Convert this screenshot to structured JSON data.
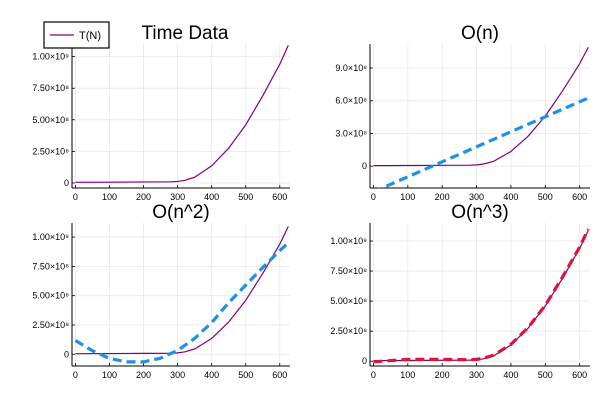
{
  "colors": {
    "tn": "#800080",
    "fit_o_n": "#1e90e6",
    "fit_o_n2": "#1e90e6",
    "fit_o_n3": "#dc143c",
    "grid": "#e8e8e8",
    "axis": "#000000"
  },
  "legend": {
    "label": "T(N)",
    "placement": "top-left"
  },
  "chart_data": [
    {
      "type": "line",
      "title": "Time Data",
      "xlabel": "",
      "ylabel": "",
      "xlim": [
        -10,
        630
      ],
      "ylim": [
        -40000000.0,
        1100000000.0
      ],
      "xticks": [
        0,
        100,
        200,
        300,
        400,
        500,
        600
      ],
      "xtick_labels": [
        "0",
        "100",
        "200",
        "300",
        "400",
        "500",
        "600"
      ],
      "yticks": [
        0,
        250000000.0,
        500000000.0,
        750000000.0,
        1000000000.0
      ],
      "ytick_labels": [
        "0",
        "2.50×10⁸",
        "5.00×10⁸",
        "7.50×10⁸",
        "1.00×10⁹"
      ],
      "grid": true,
      "series": [
        {
          "name": "T(N)",
          "style": "solid",
          "color_key": "tn",
          "x": [
            0,
            100,
            200,
            280,
            300,
            320,
            350,
            400,
            450,
            500,
            550,
            600,
            625
          ],
          "y": [
            5000000.0,
            6000000.0,
            8000000.0,
            9000000.0,
            12000000.0,
            20000000.0,
            45000000.0,
            135000000.0,
            275000000.0,
            460000000.0,
            690000000.0,
            940000000.0,
            1090000000.0
          ]
        }
      ]
    },
    {
      "type": "line",
      "title": "O(n)",
      "xlabel": "",
      "ylabel": "",
      "xlim": [
        -10,
        630
      ],
      "ylim": [
        -200000000.0,
        1120000000.0
      ],
      "xticks": [
        0,
        100,
        200,
        300,
        400,
        500,
        600
      ],
      "xtick_labels": [
        "0",
        "100",
        "200",
        "300",
        "400",
        "500",
        "600"
      ],
      "yticks": [
        0,
        300000000.0,
        600000000.0,
        900000000.0
      ],
      "ytick_labels": [
        "0",
        "3.0×10⁸",
        "6.0×10⁸",
        "9.0×10⁸"
      ],
      "grid": true,
      "series": [
        {
          "name": "T(N)",
          "style": "solid",
          "color_key": "tn",
          "x": [
            0,
            100,
            200,
            280,
            300,
            320,
            350,
            400,
            450,
            500,
            550,
            600,
            625
          ],
          "y": [
            5000000.0,
            6000000.0,
            8000000.0,
            9000000.0,
            12000000.0,
            20000000.0,
            45000000.0,
            135000000.0,
            275000000.0,
            460000000.0,
            690000000.0,
            940000000.0,
            1090000000.0
          ]
        },
        {
          "name": "",
          "style": "dashed",
          "color_key": "fit_o_n",
          "x": [
            0,
            625
          ],
          "y": [
            -235000000.0,
            625000000.0
          ]
        }
      ]
    },
    {
      "type": "line",
      "title": "O(n^2)",
      "xlabel": "",
      "ylabel": "",
      "xlim": [
        -10,
        630
      ],
      "ylim": [
        -100000000.0,
        1120000000.0
      ],
      "xticks": [
        0,
        100,
        200,
        300,
        400,
        500,
        600
      ],
      "xtick_labels": [
        "0",
        "100",
        "200",
        "300",
        "400",
        "500",
        "600"
      ],
      "yticks": [
        0,
        250000000.0,
        500000000.0,
        750000000.0,
        1000000000.0
      ],
      "ytick_labels": [
        "0",
        "2.50×10⁸",
        "5.00×10⁸",
        "7.50×10⁸",
        "1.00×10⁹"
      ],
      "grid": true,
      "series": [
        {
          "name": "T(N)",
          "style": "solid",
          "color_key": "tn",
          "x": [
            0,
            100,
            200,
            280,
            300,
            320,
            350,
            400,
            450,
            500,
            550,
            600,
            625
          ],
          "y": [
            5000000.0,
            6000000.0,
            8000000.0,
            9000000.0,
            12000000.0,
            20000000.0,
            45000000.0,
            135000000.0,
            275000000.0,
            460000000.0,
            690000000.0,
            940000000.0,
            1090000000.0
          ]
        },
        {
          "name": "",
          "style": "dashed",
          "color_key": "fit_o_n2",
          "x": [
            0,
            50,
            100,
            150,
            200,
            250,
            300,
            350,
            400,
            450,
            500,
            550,
            600,
            625
          ],
          "y": [
            118000000.0,
            30000000.0,
            -35000000.0,
            -65000000.0,
            -65000000.0,
            -33000000.0,
            33000000.0,
            135000000.0,
            270000000.0,
            440000000.0,
            590000000.0,
            740000000.0,
            885000000.0,
            950000000.0
          ]
        }
      ]
    },
    {
      "type": "line",
      "title": "O(n^3)",
      "xlabel": "",
      "ylabel": "",
      "xlim": [
        -10,
        630
      ],
      "ylim": [
        -40000000.0,
        1150000000.0
      ],
      "xticks": [
        0,
        100,
        200,
        300,
        400,
        500,
        600
      ],
      "xtick_labels": [
        "0",
        "100",
        "200",
        "300",
        "400",
        "500",
        "600"
      ],
      "yticks": [
        0,
        250000000.0,
        500000000.0,
        750000000.0,
        1000000000.0
      ],
      "ytick_labels": [
        "0",
        "2.50×10⁸",
        "5.00×10⁸",
        "7.50×10⁸",
        "1.00×10⁹"
      ],
      "grid": true,
      "series": [
        {
          "name": "T(N)",
          "style": "solid",
          "color_key": "tn",
          "x": [
            0,
            100,
            200,
            280,
            300,
            320,
            350,
            400,
            450,
            500,
            550,
            600,
            625
          ],
          "y": [
            5000000.0,
            6000000.0,
            8000000.0,
            9000000.0,
            12000000.0,
            20000000.0,
            45000000.0,
            135000000.0,
            275000000.0,
            460000000.0,
            690000000.0,
            940000000.0,
            1090000000.0
          ]
        },
        {
          "name": "",
          "style": "dashed",
          "color_key": "fit_o_n3",
          "x": [
            0,
            100,
            200,
            280,
            300,
            320,
            350,
            400,
            450,
            500,
            550,
            600,
            625
          ],
          "y": [
            -5000000.0,
            15000000.0,
            15000000.0,
            12000000.0,
            15000000.0,
            25000000.0,
            50000000.0,
            140000000.0,
            280000000.0,
            465000000.0,
            700000000.0,
            950000000.0,
            1100000000.0
          ]
        }
      ]
    }
  ]
}
